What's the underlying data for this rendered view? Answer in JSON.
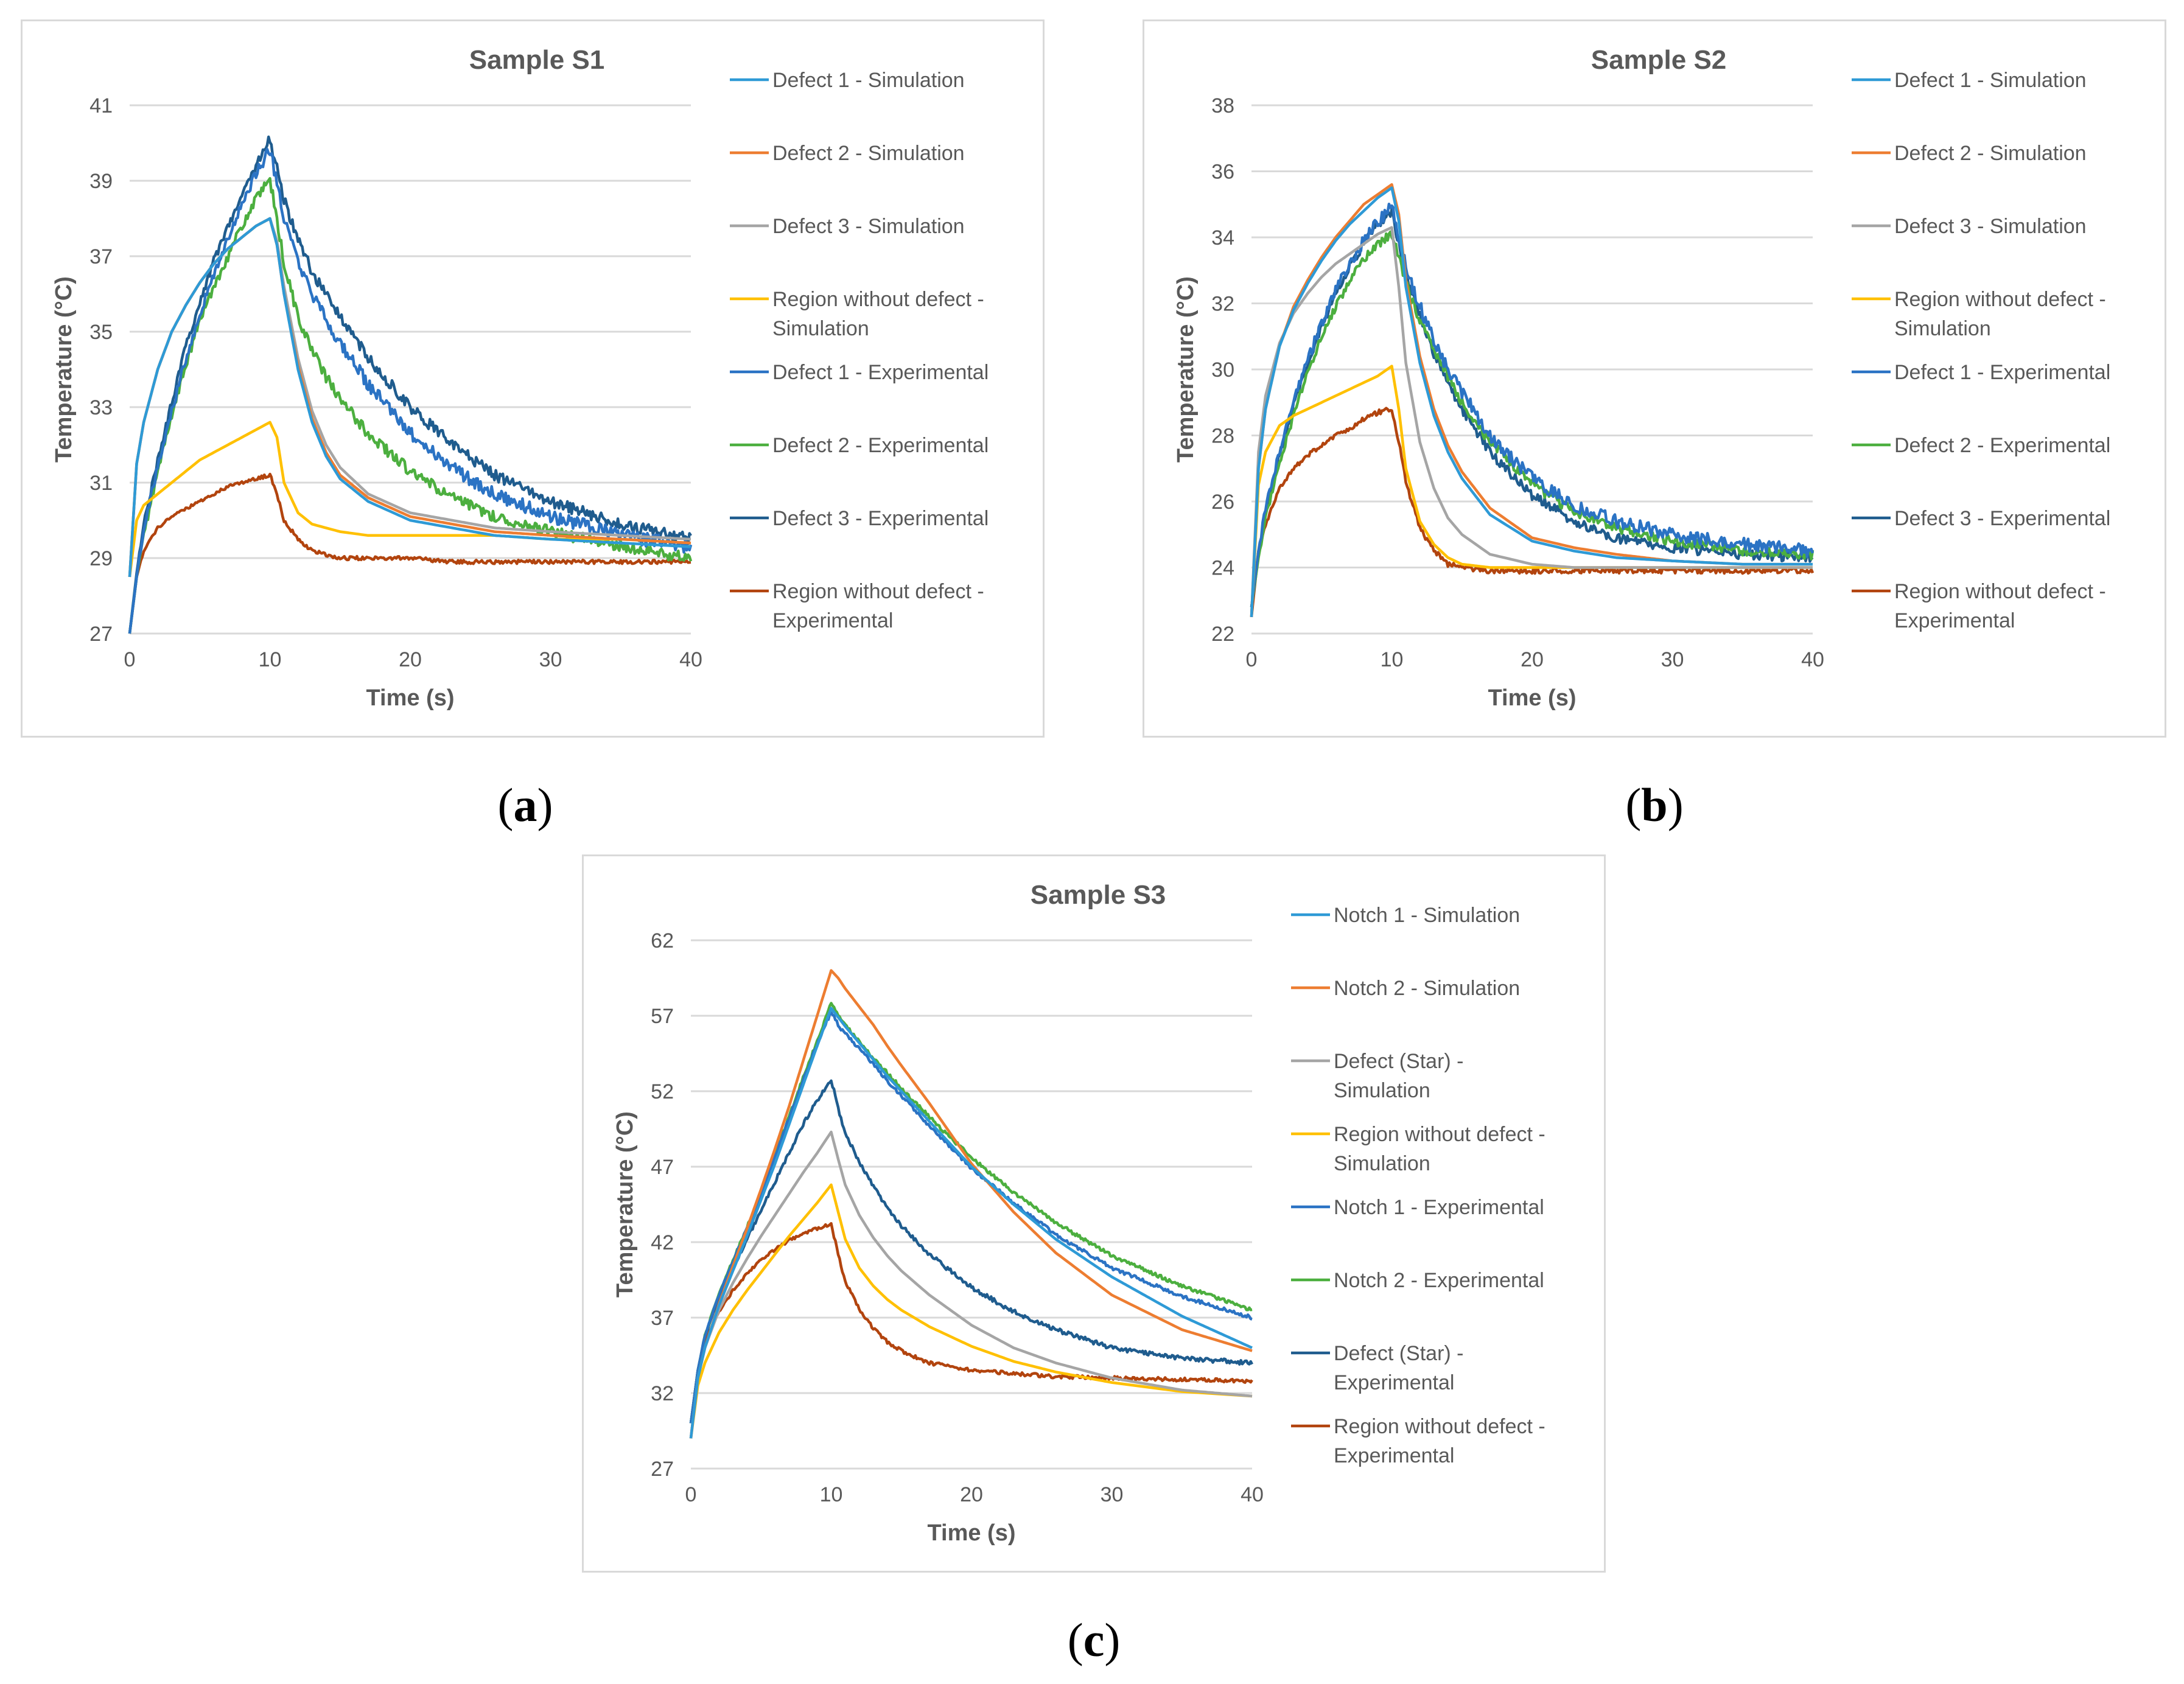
{
  "captions": {
    "a": "a",
    "b": "b",
    "c": "c"
  },
  "colors": {
    "sim1": "#2e9ad6",
    "sim2": "#ed7d31",
    "sim3": "#a5a5a5",
    "simRegion": "#ffc000",
    "exp1": "#2b73c4",
    "exp2": "#4caf3f",
    "exp3": "#1f5c8e",
    "expRegion": "#b2440e",
    "grid": "#d9d9d9",
    "axisText": "#595959",
    "title": "#595959"
  },
  "chart_data": [
    {
      "type": "line",
      "title": "Sample S1",
      "xlabel": "Time (s)",
      "ylabel": "Temperature (°C)",
      "xlim": [
        0,
        40
      ],
      "ylim": [
        27,
        41
      ],
      "xticks": [
        "0",
        "10",
        "20",
        "30",
        "40"
      ],
      "yticks": [
        "27",
        "29",
        "31",
        "33",
        "35",
        "37",
        "39",
        "41"
      ],
      "x": [
        0,
        0.5,
        1,
        2,
        3,
        4,
        5,
        6,
        7,
        8,
        9,
        10,
        10.5,
        11,
        12,
        13,
        14,
        15,
        17,
        20,
        23,
        26,
        30,
        35,
        40
      ],
      "series": [
        {
          "name": "Defect 1 - Simulation",
          "color": "sim1",
          "values": [
            28.5,
            31.5,
            32.6,
            34.0,
            35.0,
            35.7,
            36.3,
            36.8,
            37.2,
            37.5,
            37.8,
            38.0,
            37.3,
            36.0,
            34.0,
            32.6,
            31.7,
            31.1,
            30.5,
            30.0,
            29.8,
            29.6,
            29.5,
            29.4,
            29.3
          ]
        },
        {
          "name": "Defect 2 - Simulation",
          "color": "sim2",
          "values": [
            28.5,
            31.5,
            32.6,
            34.0,
            35.0,
            35.7,
            36.3,
            36.8,
            37.2,
            37.5,
            37.8,
            38.0,
            37.3,
            36.0,
            34.1,
            32.7,
            31.8,
            31.2,
            30.6,
            30.1,
            29.9,
            29.7,
            29.6,
            29.5,
            29.4
          ]
        },
        {
          "name": "Defect 3 - Simulation",
          "color": "sim3",
          "values": [
            28.5,
            31.5,
            32.6,
            34.0,
            35.0,
            35.7,
            36.3,
            36.8,
            37.2,
            37.5,
            37.8,
            38.0,
            37.4,
            36.2,
            34.3,
            32.9,
            32.0,
            31.4,
            30.7,
            30.2,
            30.0,
            29.8,
            29.7,
            29.6,
            29.5
          ]
        },
        {
          "name": "Region without defect - Simulation",
          "color": "simRegion",
          "values": [
            28.5,
            30.0,
            30.4,
            30.7,
            31.0,
            31.3,
            31.6,
            31.8,
            32.0,
            32.2,
            32.4,
            32.6,
            32.2,
            31.0,
            30.2,
            29.9,
            29.8,
            29.7,
            29.6,
            29.6,
            29.6,
            29.6,
            29.5,
            29.5,
            29.4
          ]
        },
        {
          "name": "Defect 1 - Experimental",
          "color": "exp1",
          "values": [
            27.0,
            28.5,
            29.8,
            31.4,
            32.9,
            34.3,
            35.5,
            36.5,
            37.5,
            38.3,
            39.2,
            39.8,
            39.0,
            38.0,
            36.8,
            36.0,
            35.3,
            34.7,
            33.6,
            32.3,
            31.4,
            30.7,
            30.1,
            29.6,
            29.3
          ]
        },
        {
          "name": "Defect 2 - Experimental",
          "color": "exp2",
          "values": [
            27.0,
            28.5,
            29.6,
            31.3,
            32.8,
            34.1,
            35.3,
            36.2,
            37.0,
            37.8,
            38.5,
            39.0,
            38.0,
            36.8,
            35.4,
            34.5,
            33.8,
            33.2,
            32.3,
            31.3,
            30.6,
            30.1,
            29.7,
            29.3,
            29.0
          ]
        },
        {
          "name": "Defect 3 - Experimental",
          "color": "exp3",
          "values": [
            27.0,
            28.6,
            29.9,
            31.6,
            33.1,
            34.6,
            35.8,
            36.9,
            37.8,
            38.6,
            39.4,
            40.1,
            39.3,
            38.5,
            37.4,
            36.6,
            36.0,
            35.4,
            34.3,
            33.0,
            32.0,
            31.2,
            30.5,
            29.9,
            29.5
          ]
        },
        {
          "name": "Region without defect - Experimental",
          "color": "expRegion",
          "values": [
            27.0,
            28.5,
            29.2,
            29.8,
            30.1,
            30.3,
            30.5,
            30.7,
            30.9,
            31.0,
            31.1,
            31.2,
            30.7,
            30.0,
            29.5,
            29.2,
            29.1,
            29.0,
            29.0,
            29.0,
            28.9,
            28.9,
            28.9,
            28.9,
            28.9
          ]
        }
      ],
      "noise": [
        0,
        0,
        0,
        0,
        0.18,
        0.15,
        0.15,
        0.05
      ]
    },
    {
      "type": "line",
      "title": "Sample S2",
      "xlabel": "Time (s)",
      "ylabel": "Temperature (°C)",
      "xlim": [
        0,
        40
      ],
      "ylim": [
        22,
        38
      ],
      "xticks": [
        "0",
        "10",
        "20",
        "30",
        "40"
      ],
      "yticks": [
        "22",
        "24",
        "26",
        "28",
        "30",
        "32",
        "34",
        "36",
        "38"
      ],
      "x": [
        0,
        0.5,
        1,
        2,
        3,
        4,
        5,
        6,
        7,
        8,
        9,
        10,
        10.5,
        11,
        12,
        13,
        14,
        15,
        17,
        20,
        23,
        26,
        30,
        35,
        40
      ],
      "series": [
        {
          "name": "Defect 1 - Simulation",
          "color": "sim1",
          "values": [
            22.5,
            27.0,
            28.8,
            30.7,
            31.8,
            32.6,
            33.3,
            33.9,
            34.4,
            34.8,
            35.2,
            35.5,
            34.5,
            32.5,
            30.2,
            28.6,
            27.5,
            26.7,
            25.6,
            24.8,
            24.5,
            24.3,
            24.2,
            24.1,
            24.1
          ]
        },
        {
          "name": "Defect 2 - Simulation",
          "color": "sim2",
          "values": [
            22.5,
            27.0,
            28.8,
            30.7,
            31.9,
            32.7,
            33.4,
            34.0,
            34.5,
            35.0,
            35.3,
            35.6,
            34.7,
            32.7,
            30.4,
            28.8,
            27.7,
            26.9,
            25.8,
            24.9,
            24.6,
            24.4,
            24.2,
            24.1,
            24.1
          ]
        },
        {
          "name": "Defect 3 - Simulation",
          "color": "sim3",
          "values": [
            22.5,
            27.5,
            29.2,
            30.8,
            31.7,
            32.3,
            32.8,
            33.2,
            33.5,
            33.8,
            34.1,
            34.3,
            32.5,
            30.2,
            27.8,
            26.4,
            25.5,
            25.0,
            24.4,
            24.1,
            24.0,
            24.0,
            24.0,
            24.0,
            24.0
          ]
        },
        {
          "name": "Region without defect - Simulation",
          "color": "simRegion",
          "values": [
            22.5,
            26.5,
            27.5,
            28.3,
            28.6,
            28.8,
            29.0,
            29.2,
            29.4,
            29.6,
            29.8,
            30.1,
            28.8,
            27.0,
            25.4,
            24.7,
            24.3,
            24.1,
            24.0,
            24.0,
            24.0,
            24.0,
            24.0,
            24.0,
            24.0
          ]
        },
        {
          "name": "Defect 1 - Experimental",
          "color": "exp1",
          "values": [
            22.8,
            24.5,
            25.8,
            27.5,
            29.0,
            30.3,
            31.4,
            32.4,
            33.2,
            33.9,
            34.5,
            34.9,
            34.0,
            33.1,
            31.9,
            30.9,
            30.0,
            29.3,
            28.0,
            26.7,
            25.9,
            25.4,
            25.0,
            24.7,
            24.5
          ]
        },
        {
          "name": "Defect 2 - Experimental",
          "color": "exp2",
          "values": [
            22.8,
            24.3,
            25.5,
            27.2,
            28.6,
            29.9,
            31.0,
            31.9,
            32.7,
            33.3,
            33.8,
            34.1,
            33.4,
            32.6,
            31.5,
            30.6,
            29.8,
            29.0,
            27.8,
            26.5,
            25.7,
            25.2,
            24.8,
            24.5,
            24.4
          ]
        },
        {
          "name": "Defect 3 - Experimental",
          "color": "exp3",
          "values": [
            22.8,
            24.4,
            25.7,
            27.4,
            28.9,
            30.2,
            31.3,
            32.3,
            33.1,
            33.8,
            34.4,
            34.8,
            33.8,
            32.9,
            31.6,
            30.5,
            29.6,
            28.8,
            27.5,
            26.2,
            25.4,
            24.9,
            24.6,
            24.4,
            24.3
          ]
        },
        {
          "name": "Region without defect - Experimental",
          "color": "expRegion",
          "values": [
            22.5,
            24.5,
            25.3,
            26.4,
            27.0,
            27.4,
            27.7,
            28.0,
            28.2,
            28.5,
            28.7,
            28.8,
            27.8,
            26.6,
            25.2,
            24.5,
            24.1,
            24.0,
            23.9,
            23.9,
            23.9,
            23.9,
            23.9,
            23.9,
            23.9
          ]
        }
      ],
      "noise": [
        0,
        0,
        0,
        0,
        0.2,
        0.15,
        0.15,
        0.08
      ]
    },
    {
      "type": "line",
      "title": "Sample S3",
      "xlabel": "Time (s)",
      "ylabel": "Temperature (°C)",
      "xlim": [
        0,
        40
      ],
      "ylim": [
        27,
        62
      ],
      "xticks": [
        "0",
        "10",
        "20",
        "30",
        "40"
      ],
      "yticks": [
        "27",
        "32",
        "37",
        "42",
        "47",
        "52",
        "57",
        "62"
      ],
      "x": [
        0,
        0.5,
        1,
        2,
        3,
        4,
        5,
        6,
        7,
        8,
        9,
        10,
        10.5,
        11,
        12,
        13,
        14,
        15,
        17,
        20,
        23,
        26,
        30,
        35,
        40
      ],
      "series": [
        {
          "name": "Notch 1 - Simulation",
          "color": "sim1",
          "values": [
            29.0,
            33.0,
            35.0,
            37.8,
            40.1,
            42.4,
            44.8,
            47.2,
            49.8,
            52.4,
            55.0,
            57.5,
            56.9,
            56.3,
            55.2,
            54.1,
            53.0,
            52.0,
            50.0,
            47.0,
            44.5,
            42.2,
            39.7,
            37.1,
            35.0
          ]
        },
        {
          "name": "Notch 2 - Simulation",
          "color": "sim2",
          "values": [
            29.0,
            33.0,
            35.0,
            37.9,
            40.4,
            42.9,
            45.5,
            48.2,
            51.0,
            54.0,
            57.0,
            60.0,
            59.5,
            58.8,
            57.6,
            56.4,
            55.0,
            53.7,
            51.2,
            47.2,
            44.0,
            41.3,
            38.5,
            36.2,
            34.8
          ]
        },
        {
          "name": "Defect (Star) - Simulation",
          "color": "sim3",
          "values": [
            29.0,
            33.0,
            35.0,
            37.5,
            39.3,
            40.9,
            42.4,
            43.8,
            45.2,
            46.6,
            47.9,
            49.3,
            47.5,
            45.8,
            43.8,
            42.3,
            41.1,
            40.1,
            38.5,
            36.5,
            35.0,
            34.0,
            33.0,
            32.2,
            31.8
          ]
        },
        {
          "name": "Region without defect - Simulation",
          "color": "simRegion",
          "values": [
            29.0,
            32.5,
            34.0,
            36.0,
            37.5,
            38.8,
            40.0,
            41.2,
            42.4,
            43.5,
            44.6,
            45.8,
            44.0,
            42.2,
            40.3,
            39.1,
            38.2,
            37.5,
            36.4,
            35.1,
            34.1,
            33.4,
            32.7,
            32.1,
            31.8
          ]
        },
        {
          "name": "Notch 1 - Experimental",
          "color": "exp1",
          "values": [
            30.0,
            33.5,
            35.8,
            38.5,
            40.7,
            42.9,
            45.2,
            47.7,
            50.2,
            52.7,
            55.1,
            57.3,
            56.4,
            55.8,
            54.8,
            53.8,
            52.7,
            51.7,
            49.7,
            46.9,
            44.6,
            42.5,
            40.3,
            38.4,
            37.0
          ]
        },
        {
          "name": "Notch 2 - Experimental",
          "color": "exp2",
          "values": [
            30.0,
            33.5,
            35.8,
            38.6,
            40.8,
            43.0,
            45.3,
            47.8,
            50.3,
            52.9,
            55.3,
            57.8,
            57.0,
            56.4,
            55.3,
            54.2,
            53.2,
            52.2,
            50.3,
            47.6,
            45.3,
            43.3,
            41.1,
            39.1,
            37.5
          ]
        },
        {
          "name": "Defect (Star) - Experimental",
          "color": "exp3",
          "values": [
            30.0,
            33.5,
            35.8,
            38.3,
            40.3,
            42.2,
            44.1,
            46.0,
            47.9,
            49.8,
            51.4,
            52.8,
            50.8,
            49.2,
            47.3,
            45.7,
            44.3,
            43.1,
            41.2,
            39.0,
            37.4,
            36.2,
            35.0,
            34.3,
            34.0
          ]
        },
        {
          "name": "Region without defect - Experimental",
          "color": "expRegion",
          "values": [
            30.0,
            33.5,
            35.5,
            37.4,
            38.8,
            39.9,
            40.8,
            41.5,
            42.1,
            42.6,
            42.9,
            43.2,
            41.2,
            39.4,
            37.6,
            36.3,
            35.4,
            34.8,
            34.0,
            33.5,
            33.3,
            33.1,
            33.0,
            32.9,
            32.8
          ]
        }
      ],
      "noise": [
        0,
        0,
        0,
        0,
        0.12,
        0.12,
        0.15,
        0.12
      ]
    }
  ]
}
